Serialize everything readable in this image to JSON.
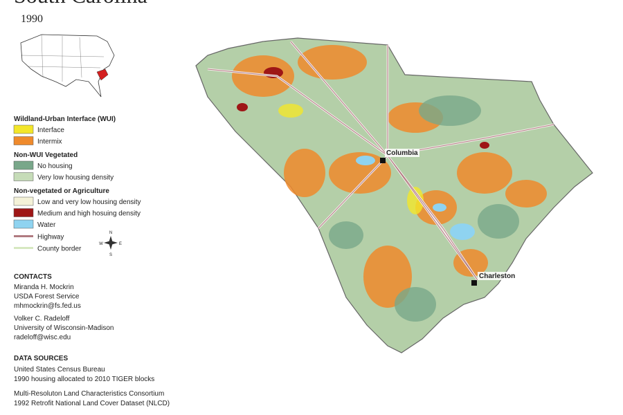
{
  "header": {
    "title": "South Carolina",
    "year": "1990"
  },
  "legend": {
    "sections": [
      {
        "title": "Wildland-Urban Interface (WUI)",
        "items": [
          {
            "label": "Interface",
            "color": "#f3e62a"
          },
          {
            "label": "Intermix",
            "color": "#ef8a2c"
          }
        ]
      },
      {
        "title": "Non-WUI Vegetated",
        "items": [
          {
            "label": "No housing",
            "color": "#79a78a"
          },
          {
            "label": "Very low housing density",
            "color": "#c6dcb8"
          }
        ]
      },
      {
        "title": "Non-vegetated or Agriculture",
        "items": [
          {
            "label": "Low and very low housing density",
            "color": "#f4f2d8"
          },
          {
            "label": "Medium and high hosuing density",
            "color": "#9e1616"
          },
          {
            "label": "Water",
            "color": "#8fd3f0"
          }
        ]
      }
    ],
    "lines": [
      {
        "label": "Highway",
        "color": "#b07a80"
      },
      {
        "label": "County border",
        "color": "#d6e8c0"
      }
    ]
  },
  "compass": [
    "N",
    "E",
    "S",
    "W"
  ],
  "contacts": {
    "title": "CONTACTS",
    "people": [
      [
        "Miranda H. Mockrin",
        "USDA Forest Service",
        "mhmockrin@fs.fed.us"
      ],
      [
        "Volker C. Radeloff",
        "University of Wisconsin-Madison",
        "radeloff@wisc.edu"
      ]
    ]
  },
  "data_sources": {
    "title": "DATA SOURCES",
    "groups": [
      [
        "United States Census Bureau",
        "1990 housing allocated to 2010 TIGER blocks"
      ],
      [
        "Multi-Resoluton Land Characteristics Consortium",
        "1992 Retrofit National Land Cover Dataset (NLCD)"
      ]
    ]
  },
  "cities": [
    {
      "label": "Columbia"
    },
    {
      "label": "Charleston"
    }
  ]
}
